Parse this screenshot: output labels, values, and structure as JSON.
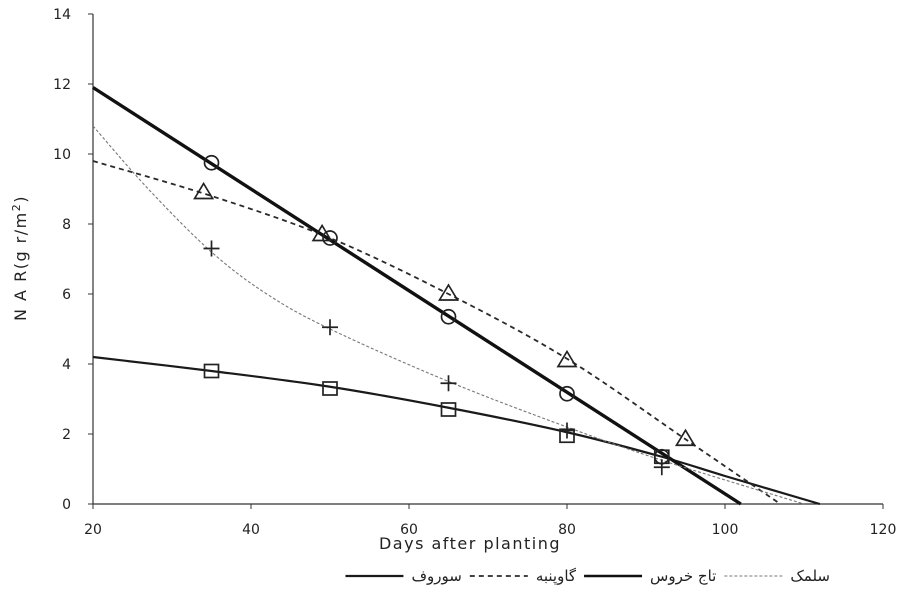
{
  "chart_data": {
    "type": "line",
    "xlabel": "Days after planting",
    "ylabel": "N A R(g r/m",
    "ylabel_sup": "2",
    "ylabel_end": ")",
    "xlim": [
      20,
      120
    ],
    "ylim": [
      0,
      14
    ],
    "xticks": [
      "20",
      "40",
      "60",
      "80",
      "100",
      "120"
    ],
    "yticks": [
      "0",
      "2",
      "4",
      "6",
      "8",
      "10",
      "12",
      "14"
    ],
    "grid": false,
    "legend_position": "bottom",
    "series": [
      {
        "name": "سوروف",
        "marker": "square",
        "line_style": "solid",
        "points": [
          {
            "x": 35,
            "y": 3.8
          },
          {
            "x": 50,
            "y": 3.3
          },
          {
            "x": 65,
            "y": 2.7
          },
          {
            "x": 80,
            "y": 1.95
          },
          {
            "x": 92,
            "y": 1.35
          }
        ],
        "trend": [
          {
            "x": 20,
            "y": 4.2
          },
          {
            "x": 35,
            "y": 3.8
          },
          {
            "x": 50,
            "y": 3.35
          },
          {
            "x": 65,
            "y": 2.75
          },
          {
            "x": 80,
            "y": 2.05
          },
          {
            "x": 92,
            "y": 1.35
          },
          {
            "x": 100,
            "y": 0.8
          },
          {
            "x": 112,
            "y": 0.0
          }
        ]
      },
      {
        "name": "گاوپنبه",
        "marker": "triangle",
        "line_style": "dashed",
        "points": [
          {
            "x": 34,
            "y": 8.9
          },
          {
            "x": 49,
            "y": 7.7
          },
          {
            "x": 65,
            "y": 6.0
          },
          {
            "x": 80,
            "y": 4.1
          },
          {
            "x": 95,
            "y": 1.85
          }
        ],
        "trend": [
          {
            "x": 20,
            "y": 9.8
          },
          {
            "x": 35,
            "y": 8.8
          },
          {
            "x": 50,
            "y": 7.6
          },
          {
            "x": 65,
            "y": 6.0
          },
          {
            "x": 80,
            "y": 4.15
          },
          {
            "x": 95,
            "y": 1.85
          },
          {
            "x": 107,
            "y": 0.0
          }
        ]
      },
      {
        "name": "تاج خروس",
        "marker": "circle",
        "line_style": "solid-thick",
        "points": [
          {
            "x": 35,
            "y": 9.75
          },
          {
            "x": 50,
            "y": 7.6
          },
          {
            "x": 65,
            "y": 5.35
          },
          {
            "x": 80,
            "y": 3.15
          },
          {
            "x": 92,
            "y": 1.35
          }
        ],
        "trend": [
          {
            "x": 20,
            "y": 11.9
          },
          {
            "x": 102,
            "y": 0.0
          }
        ]
      },
      {
        "name": "سلمک",
        "marker": "plus",
        "line_style": "dotted",
        "points": [
          {
            "x": 35,
            "y": 7.3
          },
          {
            "x": 50,
            "y": 5.05
          },
          {
            "x": 65,
            "y": 3.45
          },
          {
            "x": 80,
            "y": 2.1
          },
          {
            "x": 92,
            "y": 1.05
          }
        ],
        "trend": [
          {
            "x": 20,
            "y": 10.8
          },
          {
            "x": 27,
            "y": 9.0
          },
          {
            "x": 35,
            "y": 7.2
          },
          {
            "x": 42,
            "y": 6.0
          },
          {
            "x": 50,
            "y": 5.0
          },
          {
            "x": 65,
            "y": 3.5
          },
          {
            "x": 80,
            "y": 2.2
          },
          {
            "x": 92,
            "y": 1.25
          },
          {
            "x": 110,
            "y": 0.0
          }
        ]
      }
    ]
  }
}
